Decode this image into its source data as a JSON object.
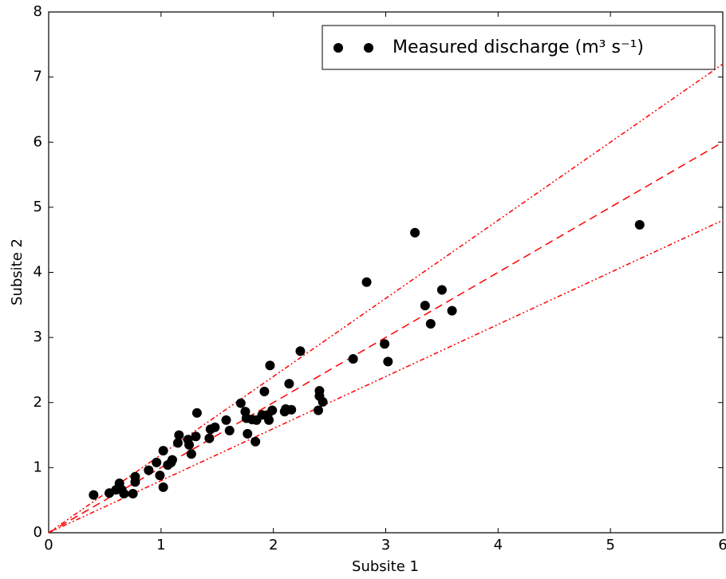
{
  "chart_data": {
    "type": "scatter",
    "xlabel": "Subsite 1",
    "ylabel": "Subsite 2",
    "xlim": [
      0,
      6
    ],
    "ylim": [
      0,
      8
    ],
    "xticks": [
      0,
      1,
      2,
      3,
      4,
      5,
      6
    ],
    "yticks": [
      0,
      1,
      2,
      3,
      4,
      5,
      6,
      7,
      8
    ],
    "legend": "upper right",
    "series": [
      {
        "name": "Measured discharge (m³ s⁻¹)",
        "color": "#000000",
        "x": [
          0.4,
          0.54,
          0.6,
          0.63,
          0.65,
          0.67,
          0.75,
          0.77,
          0.77,
          0.89,
          0.96,
          0.99,
          1.02,
          1.02,
          1.06,
          1.09,
          1.1,
          1.15,
          1.16,
          1.24,
          1.25,
          1.27,
          1.31,
          1.32,
          1.43,
          1.44,
          1.48,
          1.58,
          1.61,
          1.71,
          1.75,
          1.76,
          1.77,
          1.81,
          1.84,
          1.85,
          1.9,
          1.92,
          1.95,
          1.96,
          1.97,
          1.99,
          2.1,
          2.11,
          2.14,
          2.16,
          2.24,
          2.4,
          2.41,
          2.41,
          2.44,
          2.71,
          2.99,
          3.02,
          2.83,
          3.26,
          3.35,
          3.4,
          3.5,
          3.59,
          5.26
        ],
        "y": [
          0.58,
          0.61,
          0.66,
          0.76,
          0.66,
          0.6,
          0.6,
          0.86,
          0.78,
          0.96,
          1.08,
          0.88,
          1.26,
          0.7,
          1.04,
          1.08,
          1.12,
          1.38,
          1.5,
          1.43,
          1.35,
          1.21,
          1.48,
          1.84,
          1.45,
          1.59,
          1.62,
          1.73,
          1.57,
          1.99,
          1.86,
          1.76,
          1.52,
          1.74,
          1.4,
          1.73,
          1.81,
          2.17,
          1.81,
          1.73,
          2.57,
          1.88,
          1.86,
          1.9,
          2.29,
          1.89,
          2.79,
          1.88,
          2.18,
          2.1,
          2.01,
          2.67,
          2.9,
          2.63,
          3.85,
          4.61,
          3.49,
          3.21,
          3.73,
          3.41,
          4.73
        ]
      }
    ],
    "reference_lines": [
      {
        "x": [
          0,
          6
        ],
        "y": [
          0,
          6
        ],
        "color": "#ff0000",
        "linestyle": "dashed"
      },
      {
        "x": [
          0,
          6
        ],
        "y": [
          0,
          7.2
        ],
        "color": "#ff0000",
        "linestyle": "dashdot"
      },
      {
        "x": [
          0,
          6
        ],
        "y": [
          0,
          4.8
        ],
        "color": "#ff0000",
        "linestyle": "dashdot"
      }
    ]
  }
}
